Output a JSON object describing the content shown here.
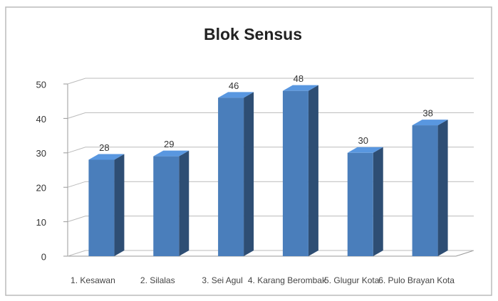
{
  "chart_data": {
    "type": "bar3d",
    "title": "Blok Sensus",
    "categories": [
      "1. Kesawan",
      "2. Silalas",
      "3. Sei Agul",
      "4. Karang Berombak",
      "5. Glugur Kota",
      "6. Pulo Brayan Kota"
    ],
    "values": [
      28,
      29,
      46,
      48,
      30,
      38
    ],
    "color": "#4a7ebb",
    "ylim": [
      0,
      50
    ],
    "yticks": [
      0,
      10,
      20,
      30,
      40,
      50
    ],
    "grid": true
  }
}
